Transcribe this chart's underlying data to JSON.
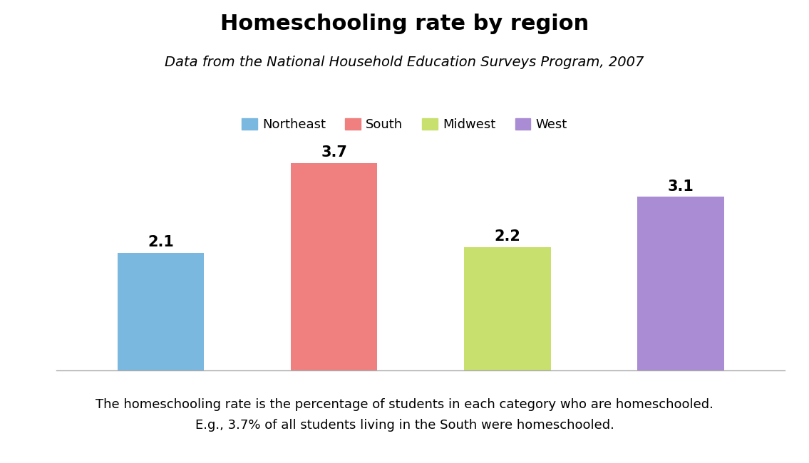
{
  "title": "Homeschooling rate by region",
  "subtitle": "Data from the National Household Education Surveys Program, 2007",
  "categories": [
    "Northeast",
    "South",
    "Midwest",
    "West"
  ],
  "values": [
    2.1,
    3.7,
    2.2,
    3.1
  ],
  "bar_colors": [
    "#7ab8e0",
    "#f08080",
    "#c8e06e",
    "#a98cd4"
  ],
  "legend_colors": [
    "#7ab8e0",
    "#f08080",
    "#c8e06e",
    "#a98cd4"
  ],
  "annotation_fontsize": 15,
  "title_fontsize": 22,
  "subtitle_fontsize": 14,
  "legend_fontsize": 13,
  "footnote": "The homeschooling rate is the percentage of students in each category who are homeschooled.\nE.g., 3.7% of all students living in the South were homeschooled.",
  "footnote_fontsize": 13,
  "ylim": [
    0,
    4.3
  ],
  "background_color": "#ffffff"
}
